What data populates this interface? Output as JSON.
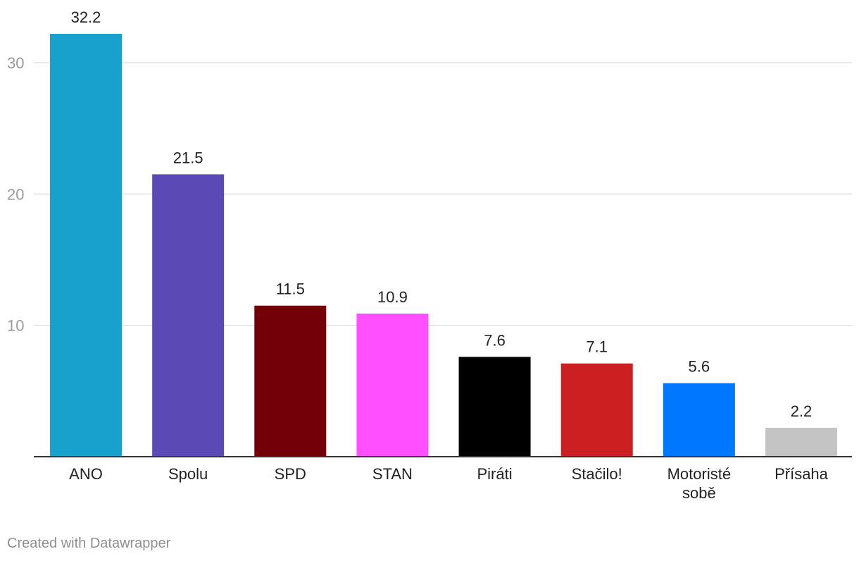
{
  "chart_data": {
    "type": "bar",
    "categories": [
      "ANO",
      "Spolu",
      "SPD",
      "STAN",
      "Piráti",
      "Stačilo!",
      "Motoristé sobě",
      "Přísaha"
    ],
    "category_lines": [
      [
        "ANO"
      ],
      [
        "Spolu"
      ],
      [
        "SPD"
      ],
      [
        "STAN"
      ],
      [
        "Piráti"
      ],
      [
        "Stačilo!"
      ],
      [
        "Motoristé",
        "sobě"
      ],
      [
        "Přísaha"
      ]
    ],
    "values": [
      32.2,
      21.5,
      11.5,
      10.9,
      7.6,
      7.1,
      5.6,
      2.2
    ],
    "value_labels": [
      "32.2",
      "21.5",
      "11.5",
      "10.9",
      "7.6",
      "7.1",
      "5.6",
      "2.2"
    ],
    "colors": [
      "#18a1cd",
      "#5b4ab5",
      "#730009",
      "#ff4fff",
      "#000000",
      "#cb1f22",
      "#0077ff",
      "#c4c4c4"
    ],
    "yticks": [
      10,
      20,
      30
    ],
    "ytick_labels": [
      "10",
      "20",
      "30"
    ],
    "ylim": [
      0,
      32.2
    ],
    "grid": true,
    "title": "",
    "xlabel": "",
    "ylabel": ""
  },
  "footer": {
    "credit": "Created with Datawrapper"
  }
}
